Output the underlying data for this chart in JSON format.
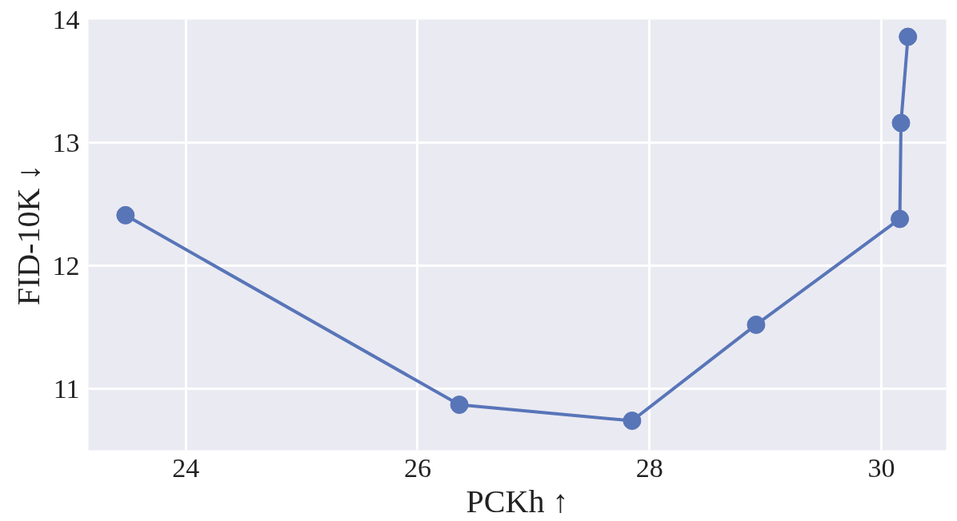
{
  "chart_data": {
    "type": "line",
    "xlabel": "PCKh ↑",
    "ylabel": "FID-10K ↓",
    "x": [
      23.48,
      26.36,
      27.85,
      28.92,
      30.16,
      30.17,
      30.23
    ],
    "series": [
      {
        "color": "#5875b8",
        "values": [
          12.41,
          10.87,
          10.74,
          11.52,
          12.38,
          13.16,
          13.86
        ]
      }
    ],
    "xlim": [
      23.16,
      30.56
    ],
    "ylim": [
      10.5,
      14.0
    ],
    "xticks": [
      24,
      26,
      28,
      30
    ],
    "yticks": [
      11,
      12,
      13,
      14
    ],
    "grid": true,
    "marker": "circle",
    "line_style": "solid"
  }
}
